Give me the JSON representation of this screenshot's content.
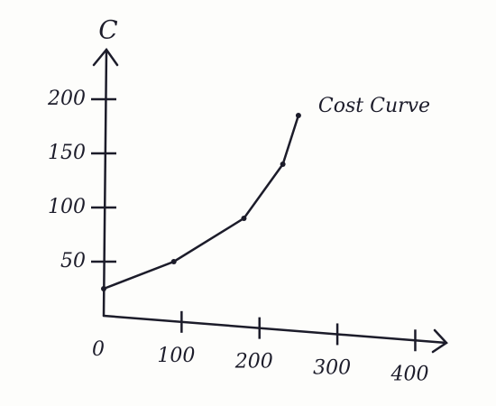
{
  "chart_data": {
    "type": "line",
    "y_label": "C",
    "x": [
      0,
      90,
      180,
      230,
      250
    ],
    "series": [
      {
        "name": "Cost Curve",
        "color": "#1c1c2a",
        "values": [
          25,
          50,
          90,
          140,
          185
        ]
      }
    ],
    "xlim": [
      0,
      440
    ],
    "ylim": [
      0,
      240
    ],
    "xticks": [
      0,
      100,
      200,
      300,
      400
    ],
    "yticks": [
      50,
      100,
      150,
      200
    ],
    "grid": false
  }
}
